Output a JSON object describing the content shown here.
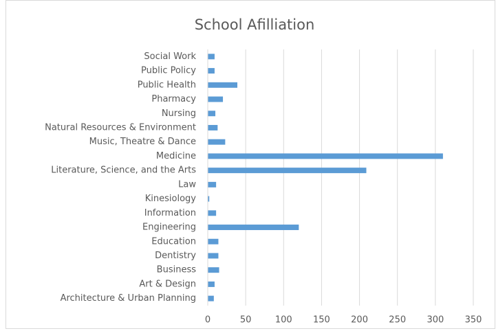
{
  "chart_data": {
    "type": "bar",
    "orientation": "horizontal",
    "title": "School Afilliation",
    "categories": [
      "Architecture & Urban Planning",
      "Art & Design",
      "Business",
      "Dentistry",
      "Education",
      "Engineering",
      "Information",
      "Kinesiology",
      "Law",
      "Literature, Science, and the Arts",
      "Medicine",
      "Music, Theatre & Dance",
      "Natural Resources & Environment",
      "Nursing",
      "Pharmacy",
      "Public Health",
      "Public Policy",
      "Social Work"
    ],
    "values": [
      8,
      9,
      15,
      14,
      14,
      120,
      11,
      2,
      11,
      209,
      310,
      23,
      13,
      10,
      20,
      39,
      9,
      9
    ],
    "color": "#5b9bd5",
    "xlim": [
      0,
      350
    ],
    "xticks": [
      0,
      50,
      100,
      150,
      200,
      250,
      300,
      350
    ],
    "grid": true
  }
}
